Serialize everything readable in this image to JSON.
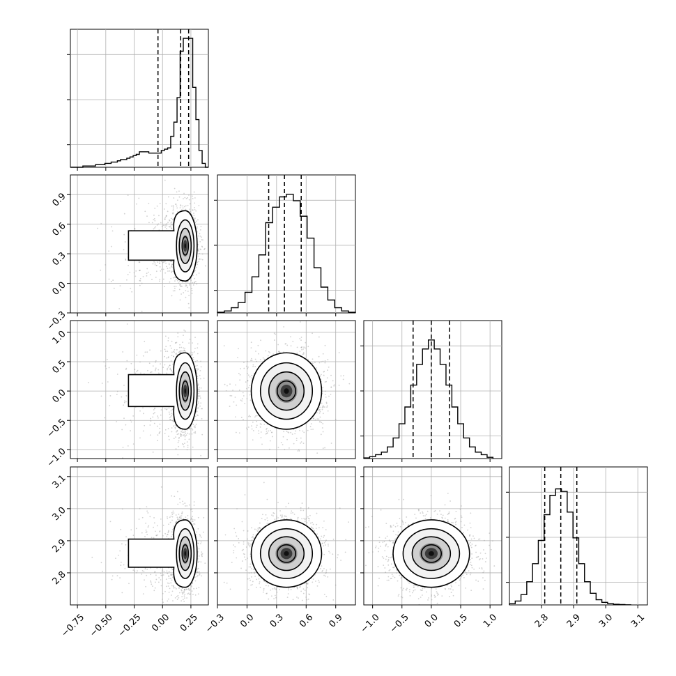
{
  "chart_data": {
    "type": "corner",
    "figure": {
      "grid": true,
      "quantile_lines": "dashed",
      "scatter_color": "#888888",
      "line_color": "#000000"
    },
    "parameters": [
      {
        "key": "p0",
        "histogram": {
          "edges": [
            -0.812,
            -0.785,
            -0.757,
            -0.729,
            -0.702,
            -0.674,
            -0.646,
            -0.619,
            -0.591,
            -0.563,
            -0.536,
            -0.508,
            -0.481,
            -0.453,
            -0.425,
            -0.398,
            -0.37,
            -0.342,
            -0.315,
            -0.287,
            -0.259,
            -0.232,
            -0.204,
            -0.176,
            -0.149,
            -0.121,
            -0.093,
            -0.066,
            -0.038,
            -0.011,
            0.017,
            0.045,
            0.072,
            0.1,
            0.128,
            0.155,
            0.183,
            0.211,
            0.238,
            0.266,
            0.294,
            0.321,
            0.349,
            0.377,
            0.404
          ],
          "counts": [
            0,
            0,
            0,
            0,
            1,
            1,
            1,
            1,
            2,
            2,
            2,
            3,
            3,
            4,
            4,
            5,
            6,
            6,
            7,
            8,
            9,
            10,
            12,
            12,
            12,
            11,
            11,
            11,
            11,
            13,
            14,
            15,
            24,
            35,
            54,
            90,
            100,
            100,
            100,
            62,
            37,
            13,
            3,
            0
          ]
        },
        "quantiles": [
          -0.04,
          0.16,
          0.23
        ],
        "axis_range": [
          -0.812,
          0.404
        ],
        "ticks": [
          -0.75,
          -0.5,
          -0.25,
          0.0,
          0.25
        ],
        "tick_labels": [
          "−0.75",
          "−0.50",
          "−0.25",
          "0.00",
          "0.25"
        ],
        "marginal_ticks": 3,
        "marginal_max": 100
      },
      {
        "key": "p1",
        "histogram": {
          "edges": [
            -0.3,
            -0.23,
            -0.16,
            -0.09,
            -0.02,
            0.05,
            0.12,
            0.19,
            0.26,
            0.33,
            0.4,
            0.47,
            0.54,
            0.61,
            0.68,
            0.75,
            0.82,
            0.89,
            0.96,
            1.03,
            1.1
          ],
          "counts": [
            0.5,
            1.5,
            4,
            8,
            16,
            28,
            45,
            70,
            82,
            90,
            92,
            87,
            75,
            58,
            35,
            20,
            10,
            4,
            1.5,
            0.5
          ]
        },
        "quantiles": [
          0.22,
          0.38,
          0.55
        ],
        "axis_range": [
          -0.3,
          1.1
        ],
        "ticks": [
          -0.3,
          0.0,
          0.3,
          0.6,
          0.9
        ],
        "tick_labels": [
          "−0.3",
          "0.0",
          "0.3",
          "0.6",
          "0.9"
        ],
        "marginal_ticks": 3,
        "marginal_max": 100
      },
      {
        "key": "p2",
        "histogram": {
          "edges": [
            -1.15,
            -1.05,
            -0.95,
            -0.85,
            -0.75,
            -0.65,
            -0.55,
            -0.45,
            -0.35,
            -0.25,
            -0.15,
            -0.05,
            0.05,
            0.15,
            0.25,
            0.35,
            0.45,
            0.55,
            0.65,
            0.75,
            0.85,
            0.95,
            1.05
          ],
          "counts": [
            0.5,
            1.5,
            3,
            5,
            9,
            16,
            27,
            40,
            57,
            73,
            85,
            92,
            85,
            73,
            57,
            40,
            27,
            16,
            9,
            5,
            3,
            1
          ]
        },
        "quantiles": [
          -0.31,
          0.0,
          0.31
        ],
        "axis_range": [
          -1.15,
          1.2
        ],
        "ticks": [
          -1.0,
          -0.5,
          0.0,
          0.5,
          1.0
        ],
        "tick_labels": [
          "−1.0",
          "−0.5",
          "0.0",
          "0.5",
          "1.0"
        ],
        "marginal_ticks": 3,
        "marginal_max": 100
      },
      {
        "key": "p3",
        "histogram": {
          "edges": [
            2.7,
            2.718,
            2.736,
            2.754,
            2.772,
            2.79,
            2.808,
            2.826,
            2.844,
            2.862,
            2.88,
            2.898,
            2.916,
            2.934,
            2.952,
            2.97,
            2.988,
            3.006,
            3.024,
            3.042,
            3.06,
            3.078
          ],
          "counts": [
            1,
            3,
            8,
            18,
            32,
            50,
            70,
            85,
            90,
            88,
            72,
            52,
            32,
            18,
            9,
            4,
            2,
            1,
            0.5,
            0.3,
            0.1
          ]
        },
        "quantiles": [
          2.81,
          2.86,
          2.91
        ],
        "axis_range": [
          2.7,
          3.13
        ],
        "ticks": [
          2.8,
          2.9,
          3.0,
          3.1
        ],
        "tick_labels": [
          "2.8",
          "2.9",
          "3.0",
          "3.1"
        ],
        "marginal_ticks": 3,
        "marginal_max": 100
      }
    ],
    "joint_panels": [
      {
        "x": 0,
        "y": 1,
        "mode_x": 0.2,
        "mode_y": 0.38,
        "sx": 0.05,
        "sy": 0.17,
        "tail_x": -0.3
      },
      {
        "x": 0,
        "y": 2,
        "mode_x": 0.2,
        "mode_y": 0.0,
        "sx": 0.05,
        "sy": 0.31,
        "tail_x": -0.3
      },
      {
        "x": 1,
        "y": 2,
        "mode_x": 0.4,
        "mode_y": 0.0,
        "sx": 0.17,
        "sy": 0.31
      },
      {
        "x": 0,
        "y": 3,
        "mode_x": 0.2,
        "mode_y": 2.86,
        "sx": 0.05,
        "sy": 0.05,
        "tail_x": -0.3
      },
      {
        "x": 1,
        "y": 3,
        "mode_x": 0.4,
        "mode_y": 2.86,
        "sx": 0.17,
        "sy": 0.05
      },
      {
        "x": 2,
        "y": 3,
        "mode_x": 0.0,
        "mode_y": 2.86,
        "sx": 0.31,
        "sy": 0.05
      }
    ]
  }
}
